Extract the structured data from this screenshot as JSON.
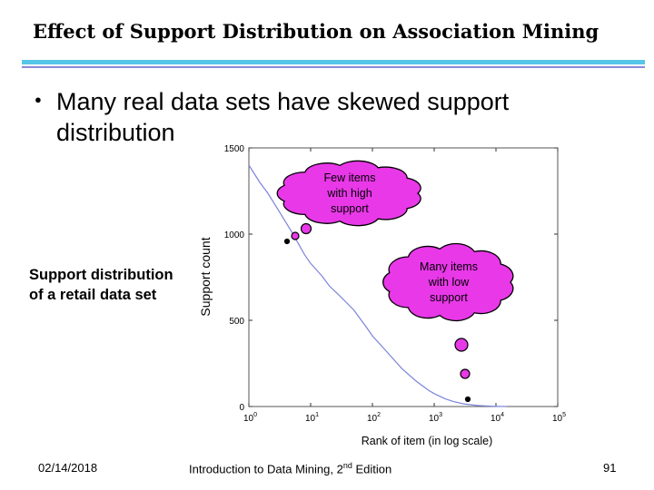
{
  "slide": {
    "title": "Effect of Support Distribution on Association Mining",
    "bullet": "Many real data sets have skewed support distribution",
    "side_label": "Support distribution of a retail data set",
    "footer_date": "02/14/2018",
    "footer_book": "Introduction to Data Mining, 2",
    "footer_book_sup": "nd",
    "footer_book_end": " Edition",
    "page_number": "91"
  },
  "annotations": {
    "cloud_high": [
      "Few items",
      "with high",
      "support"
    ],
    "cloud_low": [
      "Many items",
      "with low",
      "support"
    ]
  },
  "colors": {
    "cloud_fill": "#e838e8",
    "line": "#7b84d9",
    "rule_top": "#56c7e8",
    "rule_bottom": "#8a8ad6"
  },
  "chart_data": {
    "type": "line",
    "xlabel": "Rank of item (in log scale)",
    "ylabel": "Support count",
    "x_scale": "log",
    "xlim": [
      1,
      100000
    ],
    "ylim": [
      0,
      1500
    ],
    "x_ticks": [
      1,
      10,
      100,
      1000,
      10000,
      100000
    ],
    "y_ticks": [
      0,
      500,
      1000,
      1500
    ],
    "series": [
      {
        "x": [
          1,
          1.5,
          2,
          3,
          5,
          8,
          10,
          15,
          20,
          30,
          50,
          80,
          100,
          150,
          200,
          300,
          500,
          800,
          1000,
          1500,
          2000,
          3000,
          5000,
          8000,
          10000,
          15000
        ],
        "values": [
          1400,
          1300,
          1240,
          1140,
          1010,
          880,
          830,
          760,
          700,
          640,
          560,
          460,
          410,
          340,
          290,
          220,
          150,
          95,
          75,
          45,
          30,
          15,
          6,
          2,
          1,
          0
        ]
      }
    ]
  }
}
